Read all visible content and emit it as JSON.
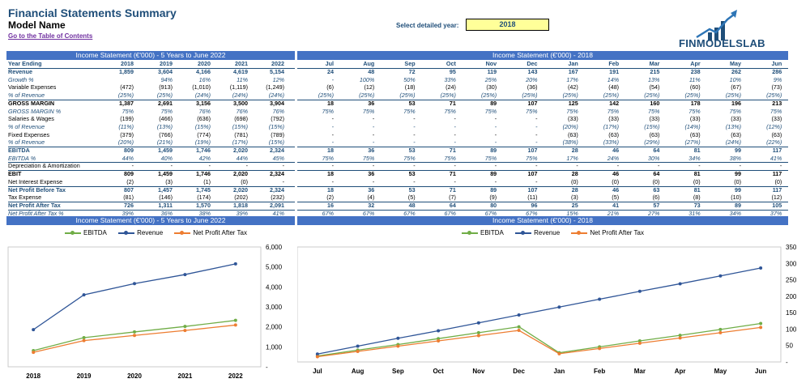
{
  "header": {
    "title": "Financial Statements Summary",
    "model_name": "Model Name",
    "toc_link": "Go to the Table of Contents",
    "year_label": "Select detailed year:",
    "year_value": "2018",
    "logo_text": "FINMODELSLAB"
  },
  "colors": {
    "band": "#4472c4",
    "navy": "#1f4e79",
    "ebitda": "#70ad47",
    "revenue": "#2f5597",
    "npat": "#ed7d31",
    "yellow": "#ffff99"
  },
  "left_table": {
    "band_title": "Income Statement (€'000) - 5 Years to June 2022",
    "corner": "Year Ending",
    "columns": [
      "2018",
      "2019",
      "2020",
      "2021",
      "2022"
    ],
    "rows": [
      {
        "label": "Revenue",
        "vals": [
          "1,859",
          "3,604",
          "4,166",
          "4,619",
          "5,154"
        ]
      },
      {
        "label": "Growth %",
        "vals": [
          "",
          "94%",
          "16%",
          "11%",
          "12%"
        ]
      },
      {
        "label": "Variable Expenses",
        "vals": [
          "(472)",
          "(913)",
          "(1,010)",
          "(1,119)",
          "(1,249)"
        ]
      },
      {
        "label": "% of Revenue",
        "vals": [
          "(25%)",
          "(25%)",
          "(24%)",
          "(24%)",
          "(24%)"
        ]
      },
      {
        "label": "GROSS MARGIN",
        "vals": [
          "1,387",
          "2,691",
          "3,156",
          "3,500",
          "3,904"
        ]
      },
      {
        "label": "GROSS MARGIN %",
        "vals": [
          "75%",
          "75%",
          "76%",
          "76%",
          "76%"
        ]
      },
      {
        "label": "Salaries & Wages",
        "vals": [
          "(199)",
          "(466)",
          "(636)",
          "(698)",
          "(792)"
        ]
      },
      {
        "label": "% of Revenue",
        "vals": [
          "(11%)",
          "(13%)",
          "(15%)",
          "(15%)",
          "(15%)"
        ]
      },
      {
        "label": "Fixed Expenses",
        "vals": [
          "(379)",
          "(766)",
          "(774)",
          "(781)",
          "(789)"
        ]
      },
      {
        "label": "% of Revenue",
        "vals": [
          "(20%)",
          "(21%)",
          "(19%)",
          "(17%)",
          "(15%)"
        ]
      },
      {
        "label": "EBITDA",
        "vals": [
          "809",
          "1,459",
          "1,746",
          "2,020",
          "2,324"
        ]
      },
      {
        "label": "EBITDA %",
        "vals": [
          "44%",
          "40%",
          "42%",
          "44%",
          "45%"
        ]
      },
      {
        "label": "Depreciation & Amortization",
        "vals": [
          "-",
          "-",
          "-",
          "-",
          "-"
        ]
      },
      {
        "label": "EBIT",
        "vals": [
          "809",
          "1,459",
          "1,746",
          "2,020",
          "2,324"
        ]
      },
      {
        "label": "Net Interest Expense",
        "vals": [
          "(2)",
          "(3)",
          "(1)",
          "(0)",
          "-"
        ]
      },
      {
        "label": "Net Profit Before Tax",
        "vals": [
          "807",
          "1,457",
          "1,745",
          "2,020",
          "2,324"
        ]
      },
      {
        "label": "Tax Expense",
        "vals": [
          "(81)",
          "(146)",
          "(174)",
          "(202)",
          "(232)"
        ]
      },
      {
        "label": "Net Profit After Tax",
        "vals": [
          "726",
          "1,311",
          "1,570",
          "1,818",
          "2,091"
        ]
      },
      {
        "label": "Net Profit After Tax %",
        "vals": [
          "39%",
          "36%",
          "38%",
          "39%",
          "41%"
        ]
      }
    ]
  },
  "right_table": {
    "band_title": "Income Statement (€'000) - 2018",
    "columns": [
      "Jul",
      "Aug",
      "Sep",
      "Oct",
      "Nov",
      "Dec",
      "Jan",
      "Feb",
      "Mar",
      "Apr",
      "May",
      "Jun"
    ],
    "rows": [
      {
        "vals": [
          "24",
          "48",
          "72",
          "95",
          "119",
          "143",
          "167",
          "191",
          "215",
          "238",
          "262",
          "286"
        ]
      },
      {
        "vals": [
          "-",
          "100%",
          "50%",
          "33%",
          "25%",
          "20%",
          "17%",
          "14%",
          "13%",
          "11%",
          "10%",
          "9%"
        ]
      },
      {
        "vals": [
          "(6)",
          "(12)",
          "(18)",
          "(24)",
          "(30)",
          "(36)",
          "(42)",
          "(48)",
          "(54)",
          "(60)",
          "(67)",
          "(73)"
        ]
      },
      {
        "vals": [
          "(25%)",
          "(25%)",
          "(25%)",
          "(25%)",
          "(25%)",
          "(25%)",
          "(25%)",
          "(25%)",
          "(25%)",
          "(25%)",
          "(25%)",
          "(25%)"
        ]
      },
      {
        "vals": [
          "18",
          "36",
          "53",
          "71",
          "89",
          "107",
          "125",
          "142",
          "160",
          "178",
          "196",
          "213"
        ]
      },
      {
        "vals": [
          "75%",
          "75%",
          "75%",
          "75%",
          "75%",
          "75%",
          "75%",
          "75%",
          "75%",
          "75%",
          "75%",
          "75%"
        ]
      },
      {
        "vals": [
          "-",
          "-",
          "-",
          "-",
          "-",
          "-",
          "(33)",
          "(33)",
          "(33)",
          "(33)",
          "(33)",
          "(33)"
        ]
      },
      {
        "vals": [
          "-",
          "-",
          "-",
          "-",
          "-",
          "-",
          "(20%)",
          "(17%)",
          "(15%)",
          "(14%)",
          "(13%)",
          "(12%)"
        ]
      },
      {
        "vals": [
          "-",
          "-",
          "-",
          "-",
          "-",
          "-",
          "(63)",
          "(63)",
          "(63)",
          "(63)",
          "(63)",
          "(63)"
        ]
      },
      {
        "vals": [
          "-",
          "-",
          "-",
          "-",
          "-",
          "-",
          "(38%)",
          "(33%)",
          "(29%)",
          "(27%)",
          "(24%)",
          "(22%)"
        ]
      },
      {
        "vals": [
          "18",
          "36",
          "53",
          "71",
          "89",
          "107",
          "28",
          "46",
          "64",
          "81",
          "99",
          "117"
        ]
      },
      {
        "vals": [
          "75%",
          "75%",
          "75%",
          "75%",
          "75%",
          "75%",
          "17%",
          "24%",
          "30%",
          "34%",
          "38%",
          "41%"
        ]
      },
      {
        "vals": [
          "-",
          "-",
          "-",
          "-",
          "-",
          "-",
          "-",
          "-",
          "-",
          "-",
          "-",
          "-"
        ]
      },
      {
        "vals": [
          "18",
          "36",
          "53",
          "71",
          "89",
          "107",
          "28",
          "46",
          "64",
          "81",
          "99",
          "117"
        ]
      },
      {
        "vals": [
          "-",
          "-",
          "-",
          "-",
          "-",
          "-",
          "(0)",
          "(0)",
          "(0)",
          "(0)",
          "(0)",
          "(0)"
        ]
      },
      {
        "vals": [
          "18",
          "36",
          "53",
          "71",
          "89",
          "107",
          "28",
          "46",
          "63",
          "81",
          "99",
          "117"
        ]
      },
      {
        "vals": [
          "(2)",
          "(4)",
          "(5)",
          "(7)",
          "(9)",
          "(11)",
          "(3)",
          "(5)",
          "(6)",
          "(8)",
          "(10)",
          "(12)"
        ]
      },
      {
        "vals": [
          "16",
          "32",
          "48",
          "64",
          "80",
          "96",
          "25",
          "41",
          "57",
          "73",
          "89",
          "105"
        ]
      },
      {
        "vals": [
          "67%",
          "67%",
          "67%",
          "67%",
          "67%",
          "67%",
          "15%",
          "21%",
          "27%",
          "31%",
          "34%",
          "37%"
        ]
      }
    ]
  },
  "chart_data": [
    {
      "type": "line",
      "title": "Income Statement (€'000) - 5 Years to June 2022",
      "categories": [
        "2018",
        "2019",
        "2020",
        "2021",
        "2022"
      ],
      "series": [
        {
          "name": "EBITDA",
          "values": [
            809,
            1459,
            1746,
            2020,
            2324
          ]
        },
        {
          "name": "Revenue",
          "values": [
            1859,
            3604,
            4166,
            4619,
            5154
          ]
        },
        {
          "name": "Net Profit After Tax",
          "values": [
            726,
            1311,
            1570,
            1818,
            2091
          ]
        }
      ],
      "ylim": [
        0,
        6000
      ],
      "yticks": [
        "-",
        "1,000",
        "2,000",
        "3,000",
        "4,000",
        "5,000",
        "6,000"
      ],
      "legend": "top"
    },
    {
      "type": "line",
      "title": "Income Statement (€'000) - 2018",
      "categories": [
        "Jul",
        "Aug",
        "Sep",
        "Oct",
        "Nov",
        "Dec",
        "Jan",
        "Feb",
        "Mar",
        "Apr",
        "May",
        "Jun"
      ],
      "series": [
        {
          "name": "EBITDA",
          "values": [
            18,
            36,
            53,
            71,
            89,
            107,
            28,
            46,
            64,
            81,
            99,
            117
          ]
        },
        {
          "name": "Revenue",
          "values": [
            24,
            48,
            72,
            95,
            119,
            143,
            167,
            191,
            215,
            238,
            262,
            286
          ]
        },
        {
          "name": "Net Profit After Tax",
          "values": [
            16,
            32,
            48,
            64,
            80,
            96,
            25,
            41,
            57,
            73,
            89,
            105
          ]
        }
      ],
      "ylim": [
        0,
        350
      ],
      "yticks": [
        "-",
        "50",
        "100",
        "150",
        "200",
        "250",
        "300",
        "350"
      ],
      "legend": "top"
    }
  ],
  "legend_labels": [
    "EBITDA",
    "Revenue",
    "Net Profit After Tax"
  ]
}
